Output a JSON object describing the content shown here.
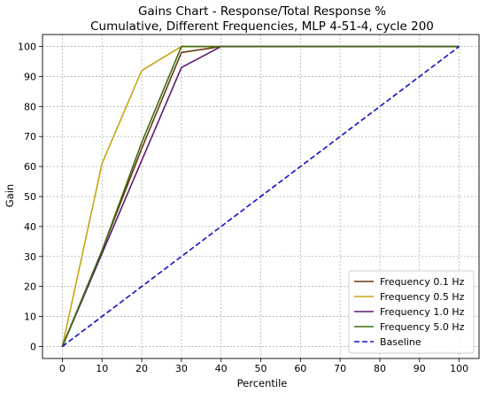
{
  "chart_data": {
    "type": "line",
    "title": "Gains Chart - Response/Total Response %",
    "subtitle": "Cumulative, Different Frequencies, MLP 4-51-4, cycle 200",
    "xlabel": "Percentile",
    "ylabel": "Gain",
    "xlim": [
      -5,
      105
    ],
    "ylim": [
      -4,
      104
    ],
    "xticks": [
      "0",
      "10",
      "20",
      "30",
      "40",
      "50",
      "60",
      "70",
      "80",
      "90",
      "100"
    ],
    "yticks": [
      "0",
      "10",
      "20",
      "30",
      "40",
      "50",
      "60",
      "70",
      "80",
      "90",
      "100"
    ],
    "grid": true,
    "legend_position": "bottom-right",
    "series": [
      {
        "name": "Frequency 0.1 Hz",
        "color": "#6b3a0f",
        "dash": "solid",
        "x": [
          0,
          10,
          20,
          30,
          40,
          100
        ],
        "y": [
          0,
          32,
          66,
          98,
          100,
          100
        ]
      },
      {
        "name": "Frequency 0.5 Hz",
        "color": "#c8a415",
        "dash": "solid",
        "x": [
          0,
          10,
          20,
          30,
          40,
          100
        ],
        "y": [
          0,
          61,
          92,
          100,
          100,
          100
        ]
      },
      {
        "name": "Frequency 1.0 Hz",
        "color": "#5b1a72",
        "dash": "solid",
        "x": [
          0,
          10,
          20,
          30,
          40,
          100
        ],
        "y": [
          0,
          31,
          62,
          93,
          100,
          100
        ]
      },
      {
        "name": "Frequency 5.0 Hz",
        "color": "#3d6b12",
        "dash": "solid",
        "x": [
          0,
          10,
          20,
          30,
          40,
          100
        ],
        "y": [
          0,
          32,
          68,
          100,
          100,
          100
        ]
      },
      {
        "name": "Baseline",
        "color": "#1010c8",
        "dash": "dashed",
        "x": [
          0,
          100
        ],
        "y": [
          0,
          100
        ]
      }
    ]
  }
}
